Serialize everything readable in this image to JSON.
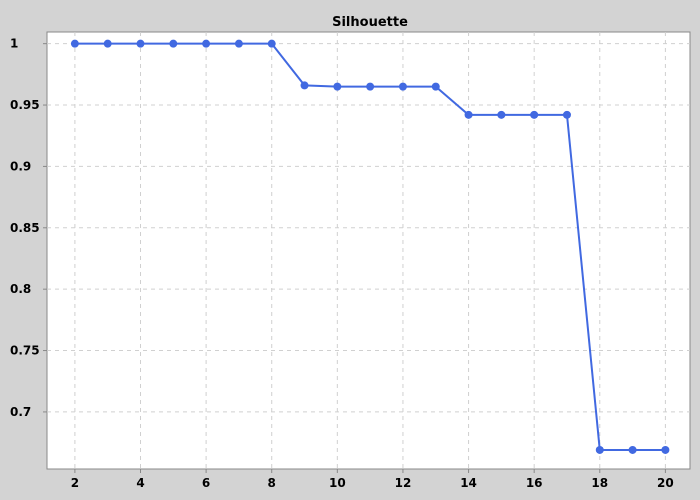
{
  "chart_data": {
    "type": "line",
    "title": "Silhouette",
    "xlabel": "",
    "ylabel": "",
    "x": [
      2,
      3,
      4,
      5,
      6,
      7,
      8,
      9,
      10,
      11,
      12,
      13,
      14,
      15,
      16,
      17,
      18,
      19,
      20
    ],
    "series": [
      {
        "values": [
          1.0,
          1.0,
          1.0,
          1.0,
          1.0,
          1.0,
          1.0,
          0.966,
          0.965,
          0.965,
          0.965,
          0.965,
          0.942,
          0.942,
          0.942,
          0.942,
          0.669,
          0.669,
          0.669
        ]
      }
    ],
    "xlim": [
      1.15,
      20.75
    ],
    "ylim": [
      0.6535,
      1.0095
    ],
    "x_ticks": [
      2,
      4,
      6,
      8,
      10,
      12,
      14,
      16,
      18,
      20
    ],
    "y_ticks": [
      0.7,
      0.75,
      0.8,
      0.85,
      0.9,
      0.95,
      1
    ],
    "x_tick_labels": [
      "2",
      "4",
      "6",
      "8",
      "10",
      "12",
      "14",
      "16",
      "18",
      "20"
    ],
    "y_tick_labels": [
      "0.7",
      "0.75",
      "0.8",
      "0.85",
      "0.9",
      "0.95",
      "1"
    ],
    "grid": true,
    "legend": "none",
    "colors": {
      "line": "#4169e1",
      "background": "#d3d3d3",
      "plot_background": "#ffffff",
      "grid": "#d0d0d0"
    }
  }
}
